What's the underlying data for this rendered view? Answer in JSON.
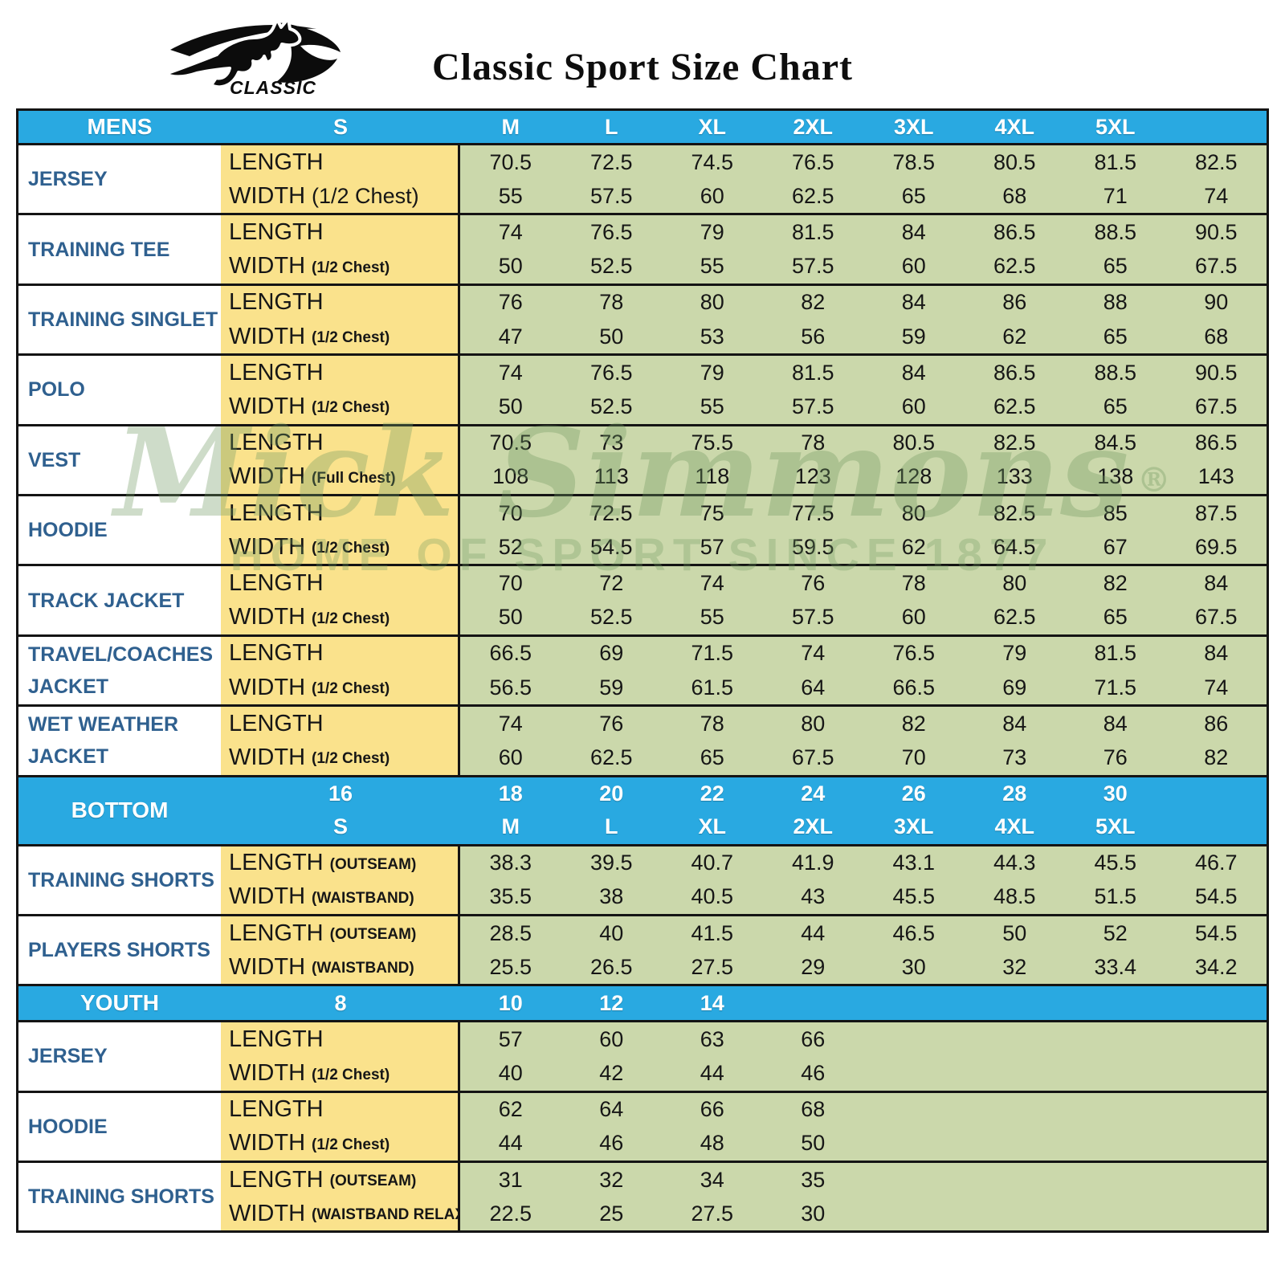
{
  "header": {
    "logo_text": "CLASSIC",
    "title": "Classic Sport Size Chart"
  },
  "watermark": {
    "line1": "Mick Simmons",
    "registered": "®",
    "line2": "HOME OF SPORT SINCE 1877"
  },
  "colors": {
    "header_blue": "#29a9e1",
    "label_yellow": "#fae28c",
    "value_green": "#cbd8ab",
    "item_text_blue": "#2f608f",
    "border_black": "#141414"
  },
  "sections": [
    {
      "id": "mens",
      "label": "MENS",
      "column_lines": [
        [
          "S",
          "M",
          "L",
          "XL",
          "2XL",
          "3XL",
          "4XL",
          "5XL"
        ]
      ],
      "rows": [
        {
          "item": "JERSEY",
          "measures": [
            {
              "label": "LENGTH",
              "note": "",
              "values": [
                "70.5",
                "72.5",
                "74.5",
                "76.5",
                "78.5",
                "80.5",
                "81.5",
                "82.5"
              ]
            },
            {
              "label": "WIDTH",
              "note": "(1/2 Chest)",
              "note_large": true,
              "values": [
                "55",
                "57.5",
                "60",
                "62.5",
                "65",
                "68",
                "71",
                "74"
              ]
            }
          ]
        },
        {
          "item": "TRAINING TEE",
          "measures": [
            {
              "label": "LENGTH",
              "note": "",
              "values": [
                "74",
                "76.5",
                "79",
                "81.5",
                "84",
                "86.5",
                "88.5",
                "90.5"
              ]
            },
            {
              "label": "WIDTH",
              "note": "(1/2 Chest)",
              "values": [
                "50",
                "52.5",
                "55",
                "57.5",
                "60",
                "62.5",
                "65",
                "67.5"
              ]
            }
          ]
        },
        {
          "item": "TRAINING SINGLET",
          "measures": [
            {
              "label": "LENGTH",
              "note": "",
              "values": [
                "76",
                "78",
                "80",
                "82",
                "84",
                "86",
                "88",
                "90"
              ]
            },
            {
              "label": "WIDTH",
              "note": "(1/2 Chest)",
              "values": [
                "47",
                "50",
                "53",
                "56",
                "59",
                "62",
                "65",
                "68"
              ]
            }
          ]
        },
        {
          "item": "POLO",
          "measures": [
            {
              "label": "LENGTH",
              "note": "",
              "values": [
                "74",
                "76.5",
                "79",
                "81.5",
                "84",
                "86.5",
                "88.5",
                "90.5"
              ]
            },
            {
              "label": "WIDTH",
              "note": "(1/2 Chest)",
              "values": [
                "50",
                "52.5",
                "55",
                "57.5",
                "60",
                "62.5",
                "65",
                "67.5"
              ]
            }
          ]
        },
        {
          "item": "VEST",
          "measures": [
            {
              "label": "LENGTH",
              "note": "",
              "values": [
                "70.5",
                "73",
                "75.5",
                "78",
                "80.5",
                "82.5",
                "84.5",
                "86.5"
              ]
            },
            {
              "label": "WIDTH",
              "note": "(Full Chest)",
              "values": [
                "108",
                "113",
                "118",
                "123",
                "128",
                "133",
                "138",
                "143"
              ]
            }
          ]
        },
        {
          "item": "HOODIE",
          "measures": [
            {
              "label": "LENGTH",
              "note": "",
              "values": [
                "70",
                "72.5",
                "75",
                "77.5",
                "80",
                "82.5",
                "85",
                "87.5"
              ]
            },
            {
              "label": "WIDTH",
              "note": "(1/2 Chest)",
              "values": [
                "52",
                "54.5",
                "57",
                "59.5",
                "62",
                "64.5",
                "67",
                "69.5"
              ]
            }
          ]
        },
        {
          "item": "TRACK JACKET",
          "measures": [
            {
              "label": "LENGTH",
              "note": "",
              "values": [
                "70",
                "72",
                "74",
                "76",
                "78",
                "80",
                "82",
                "84"
              ]
            },
            {
              "label": "WIDTH",
              "note": "(1/2 Chest)",
              "values": [
                "50",
                "52.5",
                "55",
                "57.5",
                "60",
                "62.5",
                "65",
                "67.5"
              ]
            }
          ]
        },
        {
          "item": "TRAVEL/COACHES JACKET",
          "measures": [
            {
              "label": "LENGTH",
              "note": "",
              "values": [
                "66.5",
                "69",
                "71.5",
                "74",
                "76.5",
                "79",
                "81.5",
                "84"
              ]
            },
            {
              "label": "WIDTH",
              "note": "(1/2 Chest)",
              "values": [
                "56.5",
                "59",
                "61.5",
                "64",
                "66.5",
                "69",
                "71.5",
                "74"
              ]
            }
          ]
        },
        {
          "item": "WET WEATHER JACKET",
          "measures": [
            {
              "label": "LENGTH",
              "note": "",
              "values": [
                "74",
                "76",
                "78",
                "80",
                "82",
                "84",
                "84",
                "86"
              ]
            },
            {
              "label": "WIDTH",
              "note": "(1/2 Chest)",
              "values": [
                "60",
                "62.5",
                "65",
                "67.5",
                "70",
                "73",
                "76",
                "82"
              ]
            }
          ]
        }
      ]
    },
    {
      "id": "bottom",
      "label": "BOTTOM",
      "column_lines": [
        [
          "16",
          "18",
          "20",
          "22",
          "24",
          "26",
          "28",
          "30"
        ],
        [
          "S",
          "M",
          "L",
          "XL",
          "2XL",
          "3XL",
          "4XL",
          "5XL"
        ]
      ],
      "rows": [
        {
          "item": "TRAINING SHORTS",
          "measures": [
            {
              "label": "LENGTH",
              "note": "(OUTSEAM)",
              "values": [
                "38.3",
                "39.5",
                "40.7",
                "41.9",
                "43.1",
                "44.3",
                "45.5",
                "46.7"
              ]
            },
            {
              "label": "WIDTH",
              "note": "(WAISTBAND)",
              "values": [
                "35.5",
                "38",
                "40.5",
                "43",
                "45.5",
                "48.5",
                "51.5",
                "54.5"
              ]
            }
          ]
        },
        {
          "item": "PLAYERS SHORTS",
          "measures": [
            {
              "label": "LENGTH",
              "note": "(OUTSEAM)",
              "values": [
                "28.5",
                "40",
                "41.5",
                "44",
                "46.5",
                "50",
                "52",
                "54.5"
              ]
            },
            {
              "label": "WIDTH",
              "note": "(WAISTBAND)",
              "values": [
                "25.5",
                "26.5",
                "27.5",
                "29",
                "30",
                "32",
                "33.4",
                "34.2"
              ]
            }
          ]
        }
      ]
    },
    {
      "id": "youth",
      "label": "YOUTH",
      "column_lines": [
        [
          "8",
          "10",
          "12",
          "14",
          "",
          "",
          "",
          ""
        ]
      ],
      "rows": [
        {
          "item": "JERSEY",
          "measures": [
            {
              "label": "LENGTH",
              "note": "",
              "values": [
                "57",
                "60",
                "63",
                "66",
                "",
                "",
                "",
                ""
              ]
            },
            {
              "label": "WIDTH",
              "note": "(1/2 Chest)",
              "values": [
                "40",
                "42",
                "44",
                "46",
                "",
                "",
                "",
                ""
              ]
            }
          ]
        },
        {
          "item": "HOODIE",
          "measures": [
            {
              "label": "LENGTH",
              "note": "",
              "values": [
                "62",
                "64",
                "66",
                "68",
                "",
                "",
                "",
                ""
              ]
            },
            {
              "label": "WIDTH",
              "note": "(1/2 Chest)",
              "values": [
                "44",
                "46",
                "48",
                "50",
                "",
                "",
                "",
                ""
              ]
            }
          ]
        },
        {
          "item": "TRAINING SHORTS",
          "measures": [
            {
              "label": "LENGTH",
              "note": "(OUTSEAM)",
              "values": [
                "31",
                "32",
                "34",
                "35",
                "",
                "",
                "",
                ""
              ]
            },
            {
              "label": "WIDTH",
              "note": "(WAISTBAND RELAX)",
              "values": [
                "22.5",
                "25",
                "27.5",
                "30",
                "",
                "",
                "",
                ""
              ]
            }
          ]
        }
      ]
    }
  ]
}
